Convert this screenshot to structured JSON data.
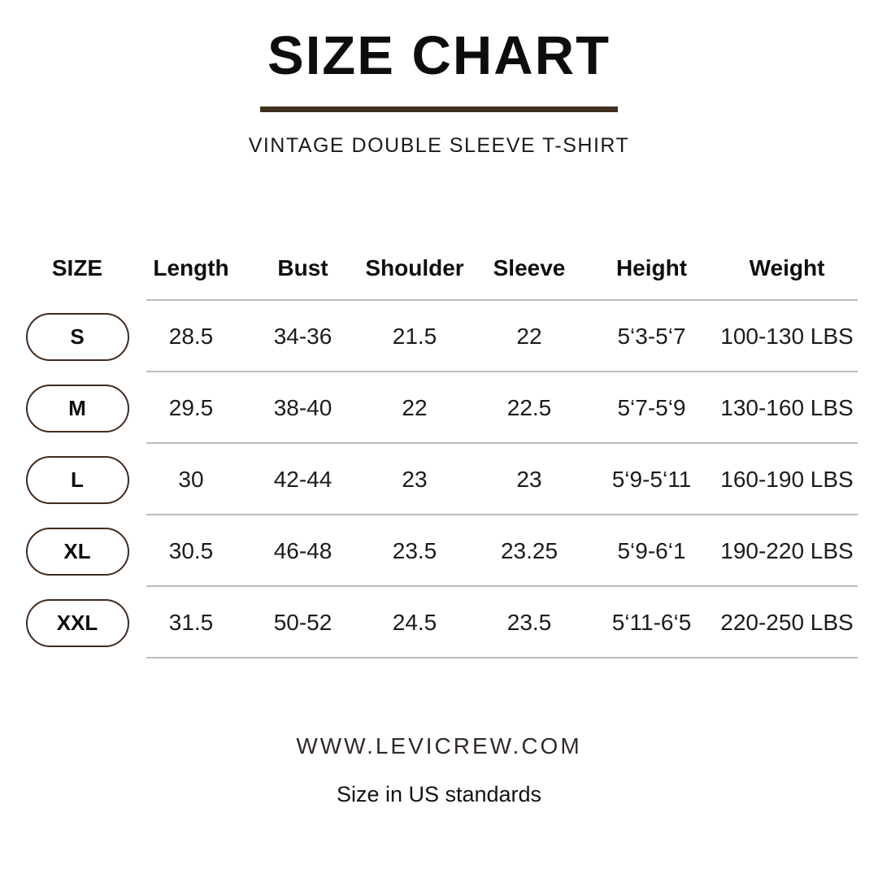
{
  "header": {
    "title": "SIZE CHART",
    "subtitle": "VINTAGE DOUBLE SLEEVE T-SHIRT",
    "divider_color": "#42301f"
  },
  "table": {
    "columns": [
      "SIZE",
      "Length",
      "Bust",
      "Shoulder",
      "Sleeve",
      "Height",
      "Weight"
    ],
    "rows": [
      {
        "size": "S",
        "length": "28.5",
        "bust": "34-36",
        "shoulder": "21.5",
        "sleeve": "22",
        "height": "5‘3-5‘7",
        "weight": "100-130 LBS"
      },
      {
        "size": "M",
        "length": "29.5",
        "bust": "38-40",
        "shoulder": "22",
        "sleeve": "22.5",
        "height": "5‘7-5‘9",
        "weight": "130-160 LBS"
      },
      {
        "size": "L",
        "length": "30",
        "bust": "42-44",
        "shoulder": "23",
        "sleeve": "23",
        "height": "5‘9-5‘11",
        "weight": "160-190 LBS"
      },
      {
        "size": "XL",
        "length": "30.5",
        "bust": "46-48",
        "shoulder": "23.5",
        "sleeve": "23.25",
        "height": "5‘9-6‘1",
        "weight": "190-220 LBS"
      },
      {
        "size": "XXL",
        "length": "31.5",
        "bust": "50-52",
        "shoulder": "24.5",
        "sleeve": "23.5",
        "height": "5‘11-6‘5",
        "weight": "220-250 LBS"
      }
    ],
    "pill_border_color": "#3e2b1f",
    "divider_color": "#bdbdbd"
  },
  "footer": {
    "website": "WWW.LEVICREW.COM",
    "note": "Size in US standards"
  }
}
